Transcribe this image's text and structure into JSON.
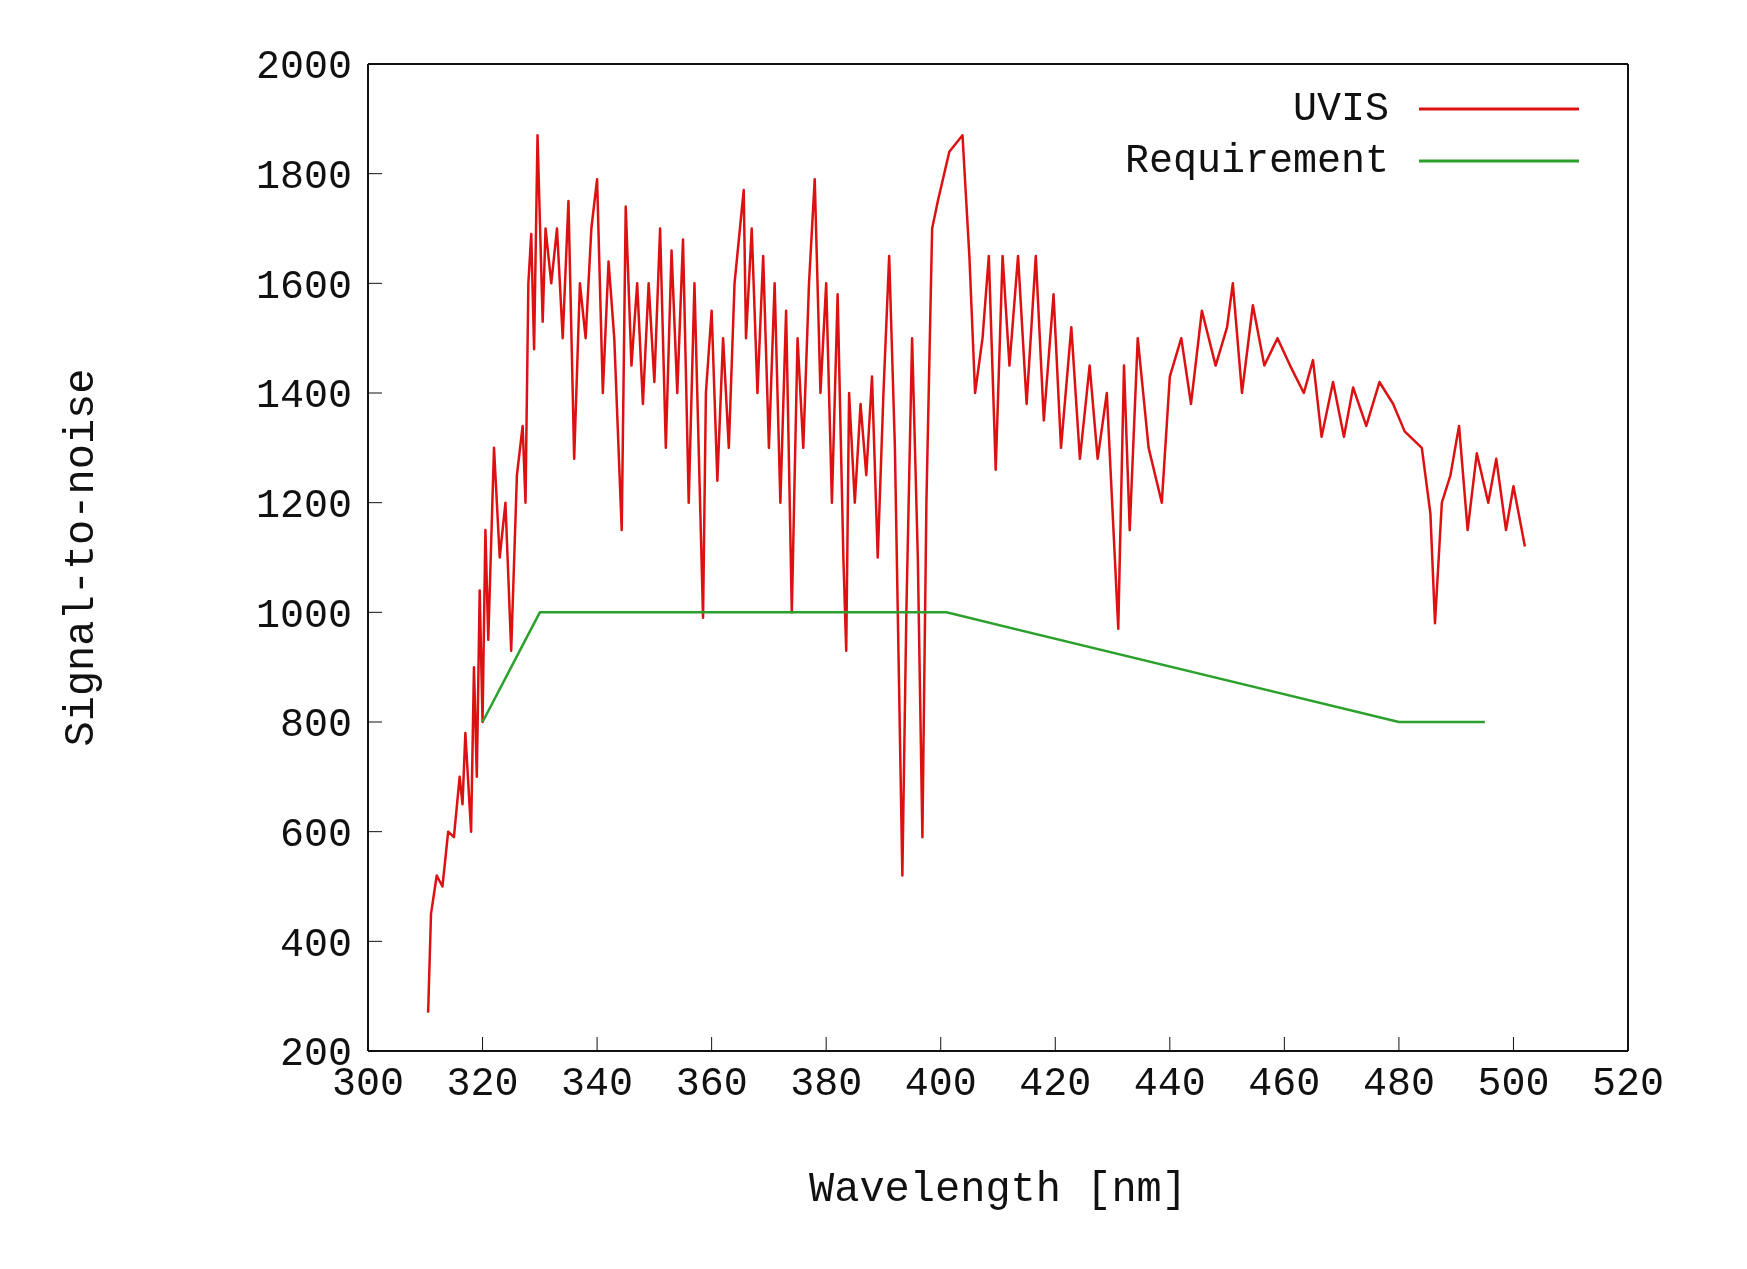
{
  "chart_data": {
    "type": "line",
    "xlabel": "Wavelength [nm]",
    "ylabel": "Signal-to-noise",
    "xlim": [
      300,
      520
    ],
    "xticks": [
      300,
      320,
      340,
      360,
      380,
      400,
      420,
      440,
      460,
      480,
      500,
      520
    ],
    "ylim": [
      200,
      2000
    ],
    "yticks": [
      200,
      400,
      600,
      800,
      1000,
      1200,
      1400,
      1600,
      1800,
      2000
    ],
    "legend": "top right",
    "marker": "none",
    "line_style": "solid",
    "series": [
      {
        "name": "UVIS",
        "color": "#dd1111",
        "x": [
          310.5,
          311,
          312,
          313,
          314,
          315,
          316,
          316.5,
          317,
          318,
          318.5,
          319,
          319.5,
          320,
          320.5,
          321,
          322,
          323,
          324,
          325,
          326,
          327,
          327.5,
          328,
          328.5,
          329,
          329.6,
          330.5,
          331,
          332,
          333,
          334,
          335,
          336,
          337,
          338,
          339,
          340,
          341,
          342,
          343,
          344.3,
          345,
          346,
          347,
          348,
          349,
          350,
          351,
          352,
          353,
          354,
          355,
          356,
          357,
          358.5,
          359,
          360,
          361,
          362,
          363,
          364,
          365.6,
          366,
          367,
          368,
          369,
          370,
          371,
          372,
          373,
          374,
          375,
          376,
          377,
          378,
          379,
          380,
          381,
          382,
          383,
          383.5,
          384,
          385,
          386,
          387,
          388,
          389,
          390,
          391,
          392,
          393.3,
          394,
          395,
          396,
          396.8,
          397.5,
          398.5,
          399.5,
          401.5,
          403.8,
          405,
          406,
          407.3,
          408.4,
          409.6,
          410.8,
          412,
          413.5,
          415,
          416.6,
          418,
          419.7,
          421,
          422.8,
          424.3,
          426,
          427.4,
          429,
          431,
          432,
          433,
          434.4,
          436.3,
          438.6,
          440,
          442,
          443.7,
          445.6,
          448,
          450,
          451,
          452.6,
          454.5,
          456.5,
          458.8,
          461,
          463.4,
          465,
          466.5,
          468.5,
          470.4,
          472,
          474.3,
          476.6,
          479,
          481,
          484,
          485.5,
          486.3,
          487.5,
          489,
          490.5,
          492,
          493.6,
          495.6,
          497,
          498.7,
          500,
          502
        ],
        "values": [
          270,
          450,
          520,
          500,
          600,
          590,
          700,
          650,
          780,
          600,
          900,
          700,
          1040,
          800,
          1150,
          950,
          1300,
          1100,
          1200,
          930,
          1250,
          1340,
          1200,
          1600,
          1690,
          1480,
          1870,
          1530,
          1700,
          1600,
          1700,
          1500,
          1750,
          1280,
          1600,
          1500,
          1700,
          1790,
          1400,
          1640,
          1500,
          1150,
          1740,
          1450,
          1600,
          1380,
          1600,
          1420,
          1700,
          1300,
          1660,
          1400,
          1680,
          1200,
          1600,
          990,
          1400,
          1550,
          1240,
          1500,
          1300,
          1600,
          1770,
          1500,
          1700,
          1400,
          1650,
          1300,
          1600,
          1200,
          1550,
          1000,
          1500,
          1300,
          1600,
          1790,
          1400,
          1600,
          1200,
          1580,
          1100,
          930,
          1400,
          1200,
          1380,
          1250,
          1430,
          1100,
          1400,
          1650,
          1300,
          520,
          1000,
          1500,
          1100,
          590,
          1200,
          1700,
          1750,
          1840,
          1870,
          1650,
          1400,
          1500,
          1650,
          1260,
          1650,
          1450,
          1650,
          1380,
          1650,
          1350,
          1580,
          1300,
          1520,
          1280,
          1450,
          1280,
          1400,
          970,
          1450,
          1150,
          1500,
          1300,
          1200,
          1430,
          1500,
          1380,
          1550,
          1450,
          1520,
          1600,
          1400,
          1560,
          1450,
          1500,
          1450,
          1400,
          1460,
          1320,
          1420,
          1320,
          1410,
          1340,
          1420,
          1380,
          1330,
          1300,
          1180,
          980,
          1200,
          1250,
          1340,
          1150,
          1290,
          1200,
          1280,
          1150,
          1230,
          1120
        ]
      },
      {
        "name": "Requirement",
        "color": "#2ca02c",
        "x": [
          320,
          330,
          401,
          480,
          495
        ],
        "values": [
          800,
          1000,
          1000,
          800,
          800
        ]
      }
    ]
  }
}
